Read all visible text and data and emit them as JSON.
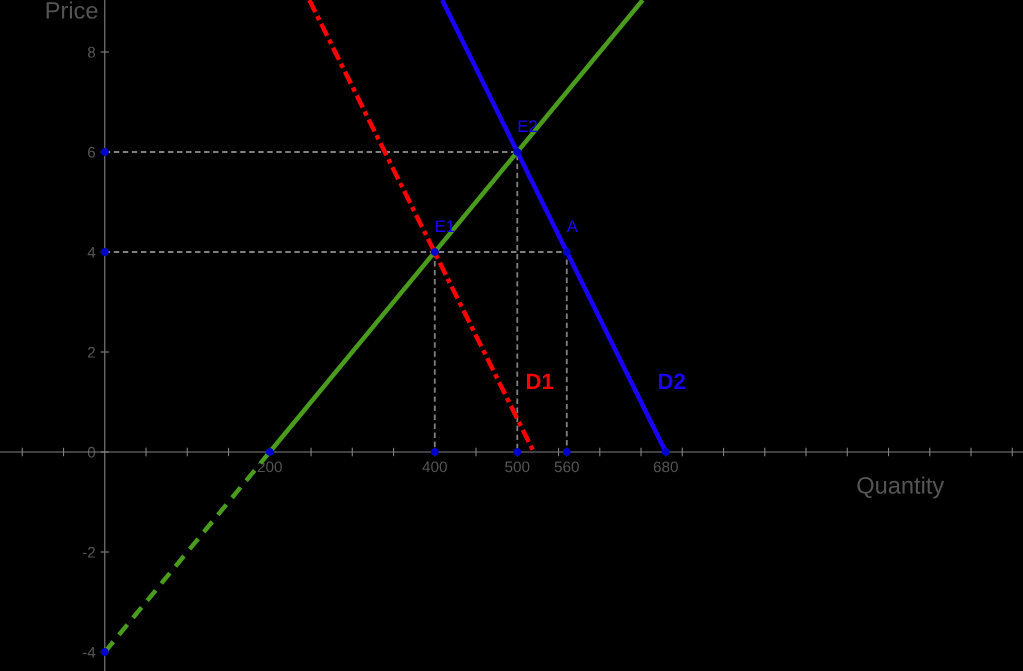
{
  "chart_data": {
    "type": "line",
    "xlabel": "Quantity",
    "ylabel": "Price",
    "xlim": [
      -127,
      1113
    ],
    "ylim": [
      -4.38,
      9.04
    ],
    "xticks": [
      {
        "value": -100,
        "label": null
      },
      {
        "value": -50,
        "label": null
      },
      {
        "value": 50,
        "label": null
      },
      {
        "value": 100,
        "label": null
      },
      {
        "value": 150,
        "label": null
      },
      200,
      {
        "value": 250,
        "label": null
      },
      {
        "value": 300,
        "label": null
      },
      {
        "value": 350,
        "label": null
      },
      400,
      {
        "value": 450,
        "label": null
      },
      500,
      {
        "value": 550,
        "label": null
      },
      560,
      {
        "value": 600,
        "label": null
      },
      {
        "value": 650,
        "label": null
      },
      680,
      {
        "value": 700,
        "label": null
      },
      {
        "value": 750,
        "label": null
      },
      {
        "value": 800,
        "label": null
      },
      {
        "value": 850,
        "label": null
      },
      {
        "value": 900,
        "label": null
      },
      {
        "value": 950,
        "label": null
      },
      {
        "value": 1000,
        "label": null
      },
      {
        "value": 1050,
        "label": null
      },
      {
        "value": 1100,
        "label": null
      }
    ],
    "yticks": [
      -4,
      -2,
      0,
      2,
      4,
      6,
      8
    ],
    "grid": false,
    "legend": false,
    "series": [
      {
        "color": "#808080",
        "line_style": "dashed",
        "x": [
          0,
          500,
          500
        ],
        "values": [
          6,
          6,
          0
        ]
      },
      {
        "color": "#808080",
        "line_style": "dashed",
        "x": [
          0,
          560,
          560
        ],
        "values": [
          4,
          4,
          0
        ]
      },
      {
        "color": "#808080",
        "line_style": "dashed",
        "x": [
          400,
          400
        ],
        "values": [
          4,
          0
        ]
      },
      {
        "color": "#4a9c1c",
        "line_style": "dashed",
        "x": [
          0,
          200
        ],
        "values": [
          -4,
          0
        ]
      },
      {
        "color": "#4a9c1c",
        "line_style": "solid",
        "x": [
          200,
          652
        ],
        "values": [
          0,
          9.04
        ]
      },
      {
        "name": "D1",
        "color": "#ff0000",
        "line_style": "dashdot",
        "x": [
          248,
          520
        ],
        "values": [
          9.04,
          0
        ]
      },
      {
        "name": "D2",
        "color": "#1a00ff",
        "line_style": "solid",
        "x": [
          409,
          680
        ],
        "values": [
          9.04,
          0
        ]
      },
      {
        "type": "scatter",
        "color": "#0000cc",
        "marker": "circle",
        "x": [
          400,
          500,
          560,
          0,
          0,
          0,
          200,
          400,
          500,
          560,
          680
        ],
        "values": [
          4,
          6,
          4,
          6,
          4,
          -4,
          0,
          0,
          0,
          0,
          0
        ]
      }
    ],
    "annotations": [
      {
        "text": "E1",
        "x": 400,
        "y": 4
      },
      {
        "text": "E2",
        "x": 500,
        "y": 6
      },
      {
        "text": "A",
        "x": 560,
        "y": 4
      }
    ]
  }
}
